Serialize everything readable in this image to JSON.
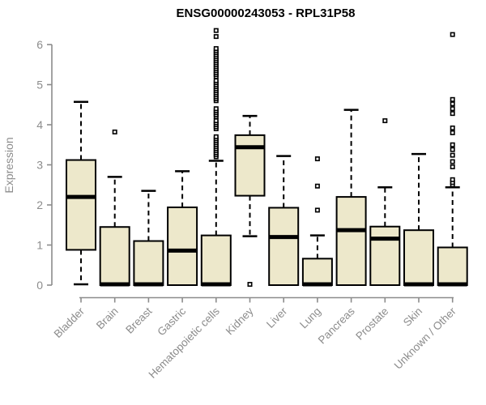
{
  "window": {
    "background": "#ffffff"
  },
  "chart_data": {
    "type": "boxplot",
    "title": "ENSG00000243053 - RPL31P58",
    "xlabel": "",
    "ylabel": "Expression",
    "ylim": [
      0,
      6.4
    ],
    "yticks": [
      0,
      1,
      2,
      3,
      4,
      5,
      6
    ],
    "grid": false,
    "legend": null,
    "categories": [
      "Bladder",
      "Brain",
      "Breast",
      "Gastric",
      "Hematopoietic cells",
      "Kidney",
      "Liver",
      "Lung",
      "Pancreas",
      "Prostate",
      "Skin",
      "Unknown / Other"
    ],
    "boxes": [
      {
        "label": "Bladder",
        "whisker_low": 0.02,
        "q1": 0.88,
        "median": 2.2,
        "q3": 3.12,
        "whisker_high": 4.57,
        "outliers": []
      },
      {
        "label": "Brain",
        "whisker_low": 0,
        "q1": 0,
        "median": 0.02,
        "q3": 1.45,
        "whisker_high": 2.7,
        "outliers": [
          3.82
        ]
      },
      {
        "label": "Breast",
        "whisker_low": 0,
        "q1": 0,
        "median": 0.02,
        "q3": 1.1,
        "whisker_high": 2.35,
        "outliers": []
      },
      {
        "label": "Gastric",
        "whisker_low": 0,
        "q1": 0,
        "median": 0.86,
        "q3": 1.94,
        "whisker_high": 2.84,
        "outliers": []
      },
      {
        "label": "Hematopoietic cells",
        "whisker_low": 0,
        "q1": 0,
        "median": 0.02,
        "q3": 1.24,
        "whisker_high": 3.1,
        "outliers": [
          3.2,
          3.25,
          3.3,
          3.35,
          3.4,
          3.45,
          3.5,
          3.55,
          3.6,
          3.65,
          3.7,
          3.9,
          3.95,
          4.0,
          4.05,
          4.1,
          4.2,
          4.25,
          4.3,
          4.35,
          4.4,
          4.6,
          4.65,
          4.7,
          4.75,
          4.8,
          4.85,
          4.9,
          4.95,
          5.0,
          5.05,
          5.1,
          5.2,
          5.25,
          5.3,
          5.35,
          5.4,
          5.45,
          5.5,
          5.55,
          5.6,
          5.65,
          5.7,
          5.75,
          5.8,
          5.85,
          5.9,
          6.2,
          6.35
        ]
      },
      {
        "label": "Kidney",
        "whisker_low": 1.22,
        "q1": 2.23,
        "median": 3.44,
        "q3": 3.74,
        "whisker_high": 4.22,
        "outliers": [
          0.02
        ]
      },
      {
        "label": "Liver",
        "whisker_low": 0,
        "q1": 0,
        "median": 1.2,
        "q3": 1.93,
        "whisker_high": 3.22,
        "outliers": []
      },
      {
        "label": "Lung",
        "whisker_low": 0,
        "q1": 0,
        "median": 0.02,
        "q3": 0.66,
        "whisker_high": 1.24,
        "outliers": [
          1.87,
          2.47,
          3.15
        ]
      },
      {
        "label": "Pancreas",
        "whisker_low": 0,
        "q1": 0,
        "median": 1.37,
        "q3": 2.2,
        "whisker_high": 4.37,
        "outliers": []
      },
      {
        "label": "Prostate",
        "whisker_low": 0,
        "q1": 0,
        "median": 1.16,
        "q3": 1.46,
        "whisker_high": 2.44,
        "outliers": [
          4.1
        ]
      },
      {
        "label": "Skin",
        "whisker_low": 0,
        "q1": 0,
        "median": 0.02,
        "q3": 1.37,
        "whisker_high": 3.27,
        "outliers": []
      },
      {
        "label": "Unknown / Other",
        "whisker_low": 0,
        "q1": 0,
        "median": 0.02,
        "q3": 0.94,
        "whisker_high": 2.44,
        "outliers": [
          2.5,
          2.56,
          2.63,
          2.95,
          3.08,
          3.24,
          3.38,
          3.5,
          3.8,
          3.92,
          4.28,
          4.4,
          4.52,
          4.63,
          6.25
        ]
      }
    ],
    "colors": {
      "box_fill": "#EDE8CB",
      "box_stroke": "#000000",
      "median": "#000000",
      "whisker": "#000000",
      "outlier_stroke": "#000000",
      "outlier_fill": "#ffffff",
      "axis": "#8C8C8C",
      "title": "#000000",
      "background": "#ffffff"
    }
  }
}
